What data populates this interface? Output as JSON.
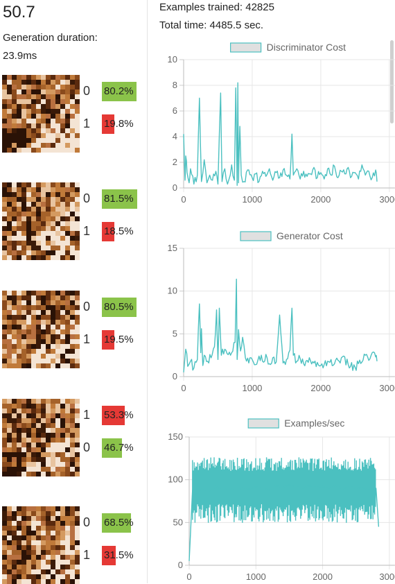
{
  "header": {
    "score": "50.7",
    "generation_label": "Generation duration:",
    "generation_value": "23.9ms"
  },
  "samples": [
    {
      "rows": [
        {
          "digit": "0",
          "pct": 80.2,
          "label": "80.2%",
          "color": "green"
        },
        {
          "digit": "1",
          "pct": 19.8,
          "label": "19.8%",
          "color": "red"
        }
      ]
    },
    {
      "rows": [
        {
          "digit": "0",
          "pct": 81.5,
          "label": "81.5%",
          "color": "green"
        },
        {
          "digit": "1",
          "pct": 18.5,
          "label": "18.5%",
          "color": "red"
        }
      ]
    },
    {
      "rows": [
        {
          "digit": "0",
          "pct": 80.5,
          "label": "80.5%",
          "color": "green"
        },
        {
          "digit": "1",
          "pct": 19.5,
          "label": "19.5%",
          "color": "red"
        }
      ]
    },
    {
      "rows": [
        {
          "digit": "1",
          "pct": 53.3,
          "label": "53.3%",
          "color": "red"
        },
        {
          "digit": "0",
          "pct": 46.7,
          "label": "46.7%",
          "color": "green"
        }
      ]
    },
    {
      "rows": [
        {
          "digit": "0",
          "pct": 68.5,
          "label": "68.5%",
          "color": "green"
        },
        {
          "digit": "1",
          "pct": 31.5,
          "label": "31.5%",
          "color": "red"
        }
      ]
    }
  ],
  "stats": {
    "examples_trained": "Examples trained: 42825",
    "total_time": "Total time: 4485.5 sec."
  },
  "colors": {
    "green": "#8bc34a",
    "red": "#e53935",
    "line": "#4bc0c0",
    "legend_fill": "#e0e0e0"
  },
  "chart_data": [
    {
      "type": "line",
      "title": "Discriminator Cost",
      "series": [
        {
          "name": "Discriminator Cost"
        }
      ],
      "xlim": [
        0,
        2850
      ],
      "ylim": [
        0,
        10
      ],
      "xticks": [
        0,
        1000,
        2000,
        3000
      ],
      "yticks": [
        0,
        2,
        4,
        6,
        8,
        10
      ],
      "grid": true,
      "x": [
        0,
        20,
        30,
        50,
        80,
        100,
        150,
        200,
        230,
        260,
        300,
        340,
        380,
        420,
        470,
        500,
        540,
        560,
        600,
        640,
        700,
        740,
        760,
        780,
        790,
        800,
        820,
        840,
        880,
        950,
        1000,
        1050,
        1100,
        1150,
        1200,
        1250,
        1300,
        1350,
        1400,
        1450,
        1500,
        1550,
        1580,
        1600,
        1650,
        1700,
        1750,
        1800,
        1850,
        1900,
        1950,
        2000,
        2050,
        2100,
        2150,
        2200,
        2250,
        2300,
        2350,
        2400,
        2450,
        2500,
        2550,
        2600,
        2650,
        2700,
        2750,
        2800,
        2820
      ],
      "values": [
        4.2,
        0.6,
        2.5,
        1.2,
        0.4,
        1.5,
        0.3,
        1.0,
        7.0,
        0.5,
        2.2,
        0.4,
        1.0,
        0.6,
        1.3,
        0.3,
        7.4,
        0.5,
        1.5,
        0.3,
        1.8,
        0.6,
        7.8,
        0.2,
        8.2,
        0.4,
        4.8,
        1.0,
        0.5,
        1.4,
        0.8,
        1.1,
        0.5,
        1.3,
        0.9,
        1.5,
        0.6,
        1.2,
        0.8,
        1.4,
        1.0,
        0.7,
        4.2,
        1.0,
        1.5,
        0.7,
        1.3,
        0.9,
        1.1,
        1.6,
        0.8,
        1.2,
        0.7,
        1.5,
        1.0,
        1.7,
        0.8,
        1.3,
        1.1,
        1.6,
        0.9,
        1.2,
        0.7,
        1.8,
        1.0,
        1.3,
        0.8,
        1.4,
        0.5
      ]
    },
    {
      "type": "line",
      "title": "Generator Cost",
      "series": [
        {
          "name": "Generator Cost"
        }
      ],
      "xlim": [
        0,
        2850
      ],
      "ylim": [
        0,
        15
      ],
      "xticks": [
        0,
        1000,
        2000,
        3000
      ],
      "yticks": [
        0,
        5,
        10,
        15
      ],
      "grid": true,
      "x": [
        0,
        30,
        60,
        100,
        150,
        200,
        230,
        250,
        260,
        280,
        300,
        350,
        400,
        450,
        480,
        500,
        520,
        550,
        600,
        700,
        750,
        770,
        780,
        800,
        830,
        860,
        900,
        950,
        1000,
        1050,
        1100,
        1150,
        1200,
        1250,
        1300,
        1350,
        1400,
        1450,
        1500,
        1550,
        1580,
        1600,
        1650,
        1700,
        1750,
        1800,
        1900,
        2000,
        2100,
        2200,
        2300,
        2400,
        2500,
        2600,
        2650,
        2700,
        2750,
        2800,
        2820
      ],
      "values": [
        0.5,
        3.2,
        1.2,
        1.8,
        1.0,
        2.0,
        8.5,
        2.8,
        5.6,
        1.3,
        2.5,
        1.8,
        2.2,
        3.5,
        7.8,
        2.0,
        8.0,
        2.5,
        3.2,
        2.8,
        4.0,
        11.4,
        2.0,
        5.5,
        3.0,
        4.6,
        2.2,
        1.6,
        2.0,
        1.4,
        2.4,
        1.8,
        2.6,
        1.5,
        2.2,
        1.7,
        7.2,
        1.6,
        2.0,
        3.1,
        8.0,
        2.5,
        1.8,
        2.1,
        1.5,
        1.9,
        1.6,
        1.3,
        1.8,
        1.5,
        2.2,
        1.4,
        1.1,
        1.7,
        2.5,
        1.9,
        2.8,
        2.3,
        1.8
      ]
    },
    {
      "type": "line",
      "title": "Examples/sec",
      "series": [
        {
          "name": "Examples/sec"
        }
      ],
      "xlim": [
        0,
        2850
      ],
      "ylim": [
        0,
        150
      ],
      "xticks": [
        0,
        1000,
        2000,
        3000
      ],
      "yticks": [
        0,
        50,
        100,
        150
      ],
      "grid": true,
      "band": {
        "low": 65,
        "high": 115
      },
      "x": [
        0,
        50,
        100,
        200,
        300,
        400,
        500,
        600,
        700,
        800,
        900,
        1000,
        1100,
        1200,
        1300,
        1400,
        1500,
        1600,
        1700,
        1800,
        1900,
        2000,
        2100,
        2200,
        2300,
        2400,
        2500,
        2600,
        2700,
        2800,
        2840
      ],
      "values": [
        5,
        88,
        82,
        90,
        85,
        92,
        88,
        90,
        87,
        91,
        89,
        92,
        90,
        88,
        93,
        91,
        94,
        92,
        90,
        93,
        91,
        92,
        90,
        93,
        89,
        92,
        90,
        91,
        88,
        90,
        45
      ]
    }
  ]
}
